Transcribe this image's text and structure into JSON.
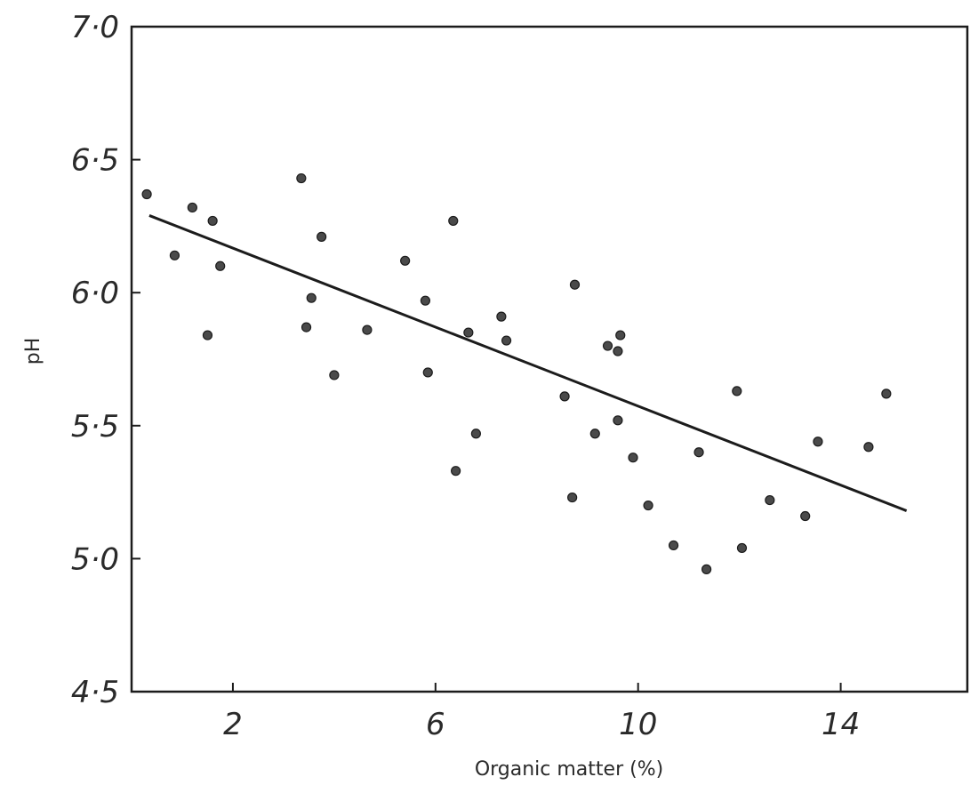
{
  "chart_data": {
    "type": "scatter",
    "title": "",
    "xlabel": "Organic matter (%)",
    "ylabel": "pH",
    "xlim": [
      0,
      16.5
    ],
    "ylim": [
      4.5,
      7.0
    ],
    "x_ticks": [
      {
        "value": 2,
        "label": "2"
      },
      {
        "value": 6,
        "label": "6"
      },
      {
        "value": 10,
        "label": "10"
      },
      {
        "value": 14,
        "label": "14"
      }
    ],
    "y_ticks": [
      {
        "value": 4.5,
        "label": "4·5"
      },
      {
        "value": 5.0,
        "label": "5·0"
      },
      {
        "value": 5.5,
        "label": "5·5"
      },
      {
        "value": 6.0,
        "label": "6·0"
      },
      {
        "value": 6.5,
        "label": "6·5"
      },
      {
        "value": 7.0,
        "label": "7·0"
      }
    ],
    "grid": false,
    "series": [
      {
        "points": [
          [
            0.3,
            6.37
          ],
          [
            0.85,
            6.14
          ],
          [
            1.2,
            6.32
          ],
          [
            1.5,
            5.84
          ],
          [
            1.6,
            6.27
          ],
          [
            1.75,
            6.1
          ],
          [
            3.35,
            6.43
          ],
          [
            3.45,
            5.87
          ],
          [
            3.55,
            5.98
          ],
          [
            3.75,
            6.21
          ],
          [
            4.0,
            5.69
          ],
          [
            4.65,
            5.86
          ],
          [
            5.4,
            6.12
          ],
          [
            5.8,
            5.97
          ],
          [
            5.85,
            5.7
          ],
          [
            6.35,
            6.27
          ],
          [
            6.4,
            5.33
          ],
          [
            6.65,
            5.85
          ],
          [
            6.8,
            5.47
          ],
          [
            7.3,
            5.91
          ],
          [
            7.4,
            5.82
          ],
          [
            8.55,
            5.61
          ],
          [
            8.7,
            5.23
          ],
          [
            8.75,
            6.03
          ],
          [
            9.15,
            5.47
          ],
          [
            9.4,
            5.8
          ],
          [
            9.6,
            5.52
          ],
          [
            9.6,
            5.78
          ],
          [
            9.65,
            5.84
          ],
          [
            9.9,
            5.38
          ],
          [
            10.2,
            5.2
          ],
          [
            10.7,
            5.05
          ],
          [
            11.2,
            5.4
          ],
          [
            11.35,
            4.96
          ],
          [
            11.95,
            5.63
          ],
          [
            12.05,
            5.04
          ],
          [
            12.6,
            5.22
          ],
          [
            13.3,
            5.16
          ],
          [
            13.55,
            5.44
          ],
          [
            14.55,
            5.42
          ],
          [
            14.9,
            5.62
          ]
        ]
      }
    ],
    "trend_line": {
      "x": [
        0.35,
        15.3
      ],
      "y": [
        6.29,
        5.18
      ]
    }
  },
  "colors": {
    "ink": "#1c1c1c",
    "point": "#4a4a4a",
    "background": "#ffffff"
  }
}
